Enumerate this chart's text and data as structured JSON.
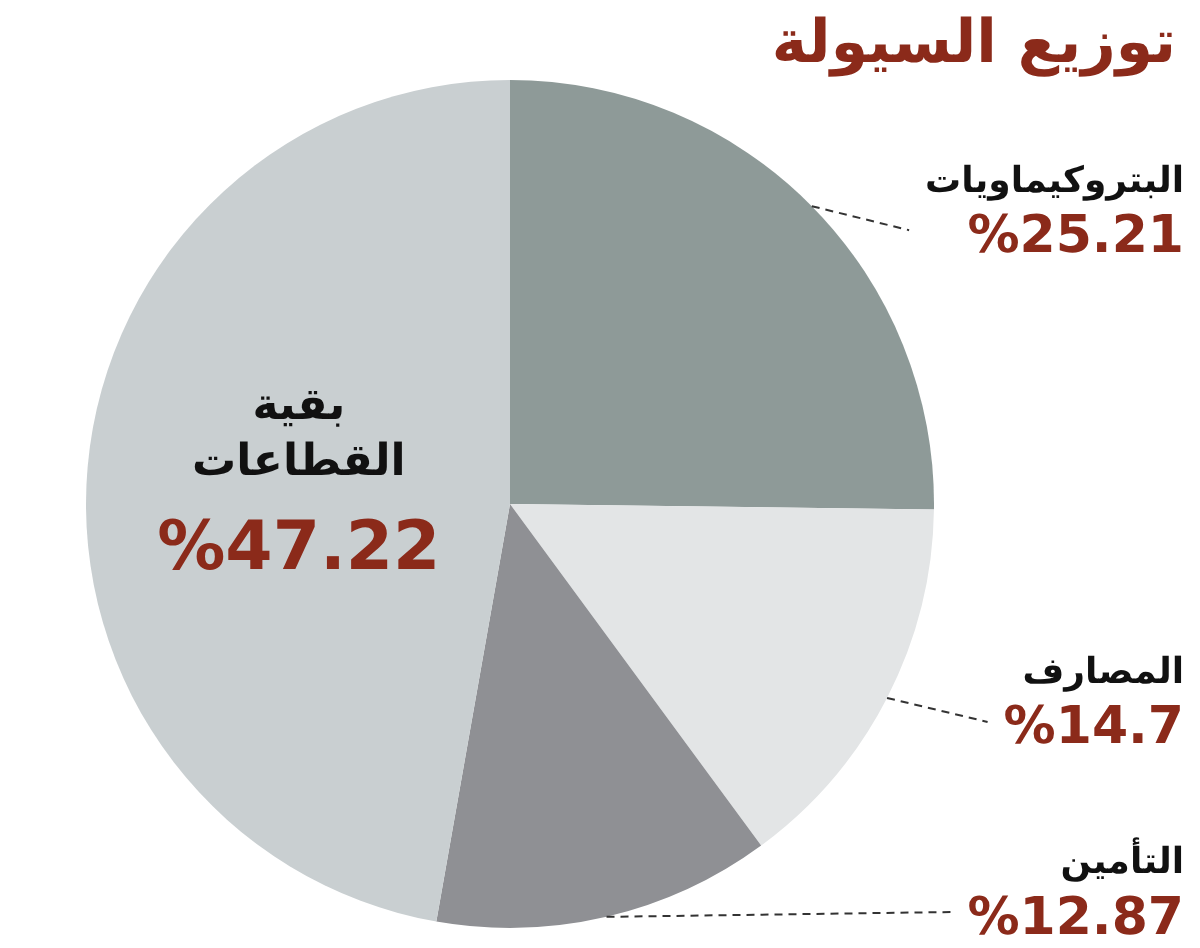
{
  "chart_data": {
    "type": "pie",
    "title": "توزيع السيولة",
    "categories": [
      "البتروكيماويات",
      "المصارف",
      "التأمين",
      "بقية القطاعات"
    ],
    "values": [
      25.21,
      14.7,
      12.87,
      47.22
    ],
    "value_labels": [
      "%25.21",
      "%14.7",
      "%12.87",
      "%47.22"
    ],
    "colors": [
      "#8e9a98",
      "#e3e5e6",
      "#8f9094",
      "#c9cfd1"
    ],
    "legend": false
  }
}
